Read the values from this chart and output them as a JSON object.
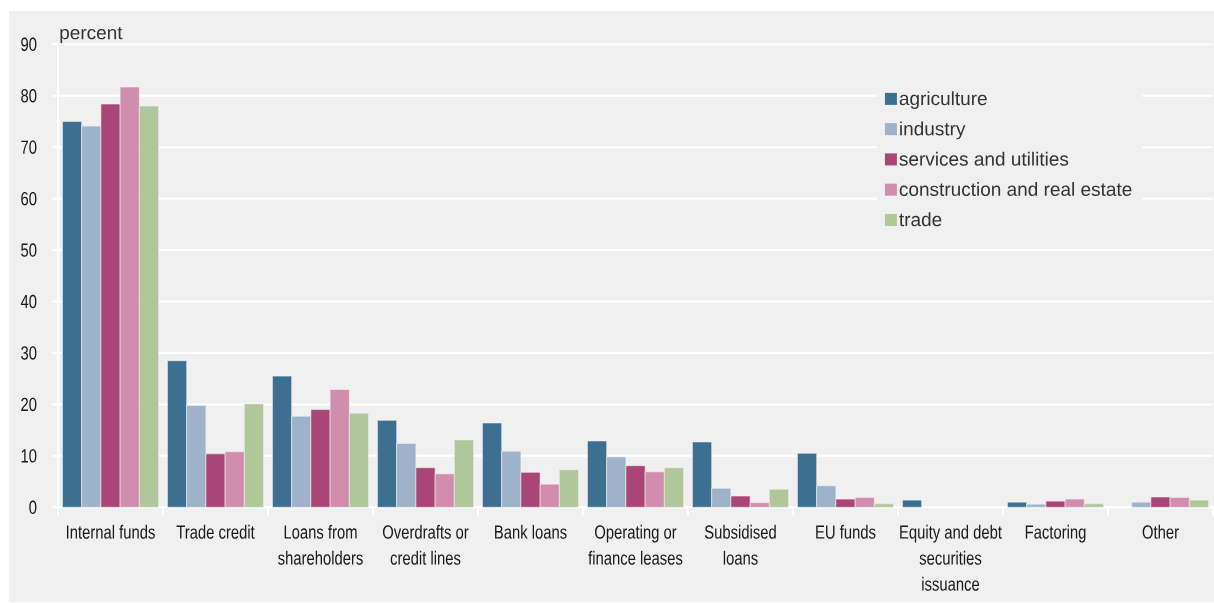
{
  "chart_data": {
    "type": "bar",
    "ylabel": "percent",
    "categories": [
      "Internal funds",
      "Trade credit",
      "Loans from shareholders",
      "Overdrafts or credit lines",
      "Bank loans",
      "Operating or finance leases",
      "Subsidised loans",
      "EU funds",
      "Equity and debt securities issuance",
      "Factoring",
      "Other"
    ],
    "series": [
      {
        "name": "agriculture",
        "color": "#3d7090",
        "values": [
          75.0,
          28.5,
          25.5,
          16.9,
          16.4,
          12.9,
          12.7,
          10.5,
          1.4,
          1.0,
          null
        ]
      },
      {
        "name": "industry",
        "color": "#9eb3c9",
        "values": [
          74.1,
          19.8,
          17.7,
          12.4,
          10.9,
          9.8,
          3.7,
          4.2,
          null,
          0.6,
          1.0
        ]
      },
      {
        "name": "services and utilities",
        "color": "#a94677",
        "values": [
          78.4,
          10.4,
          19.0,
          7.7,
          6.8,
          8.1,
          2.2,
          1.6,
          null,
          1.2,
          2.0
        ]
      },
      {
        "name": "construction and real estate",
        "color": "#d08dad",
        "values": [
          81.7,
          10.8,
          22.9,
          6.5,
          4.5,
          6.9,
          0.9,
          1.9,
          null,
          1.6,
          1.9
        ]
      },
      {
        "name": "trade",
        "color": "#b0c79c",
        "values": [
          78.0,
          20.1,
          18.3,
          13.1,
          7.3,
          7.7,
          3.5,
          0.7,
          null,
          0.7,
          1.4
        ]
      }
    ],
    "ylim": [
      0,
      90
    ],
    "yticks": [
      0,
      10,
      20,
      30,
      40,
      50,
      60,
      70,
      80,
      90
    ],
    "grid": "y",
    "legend": "top right"
  }
}
